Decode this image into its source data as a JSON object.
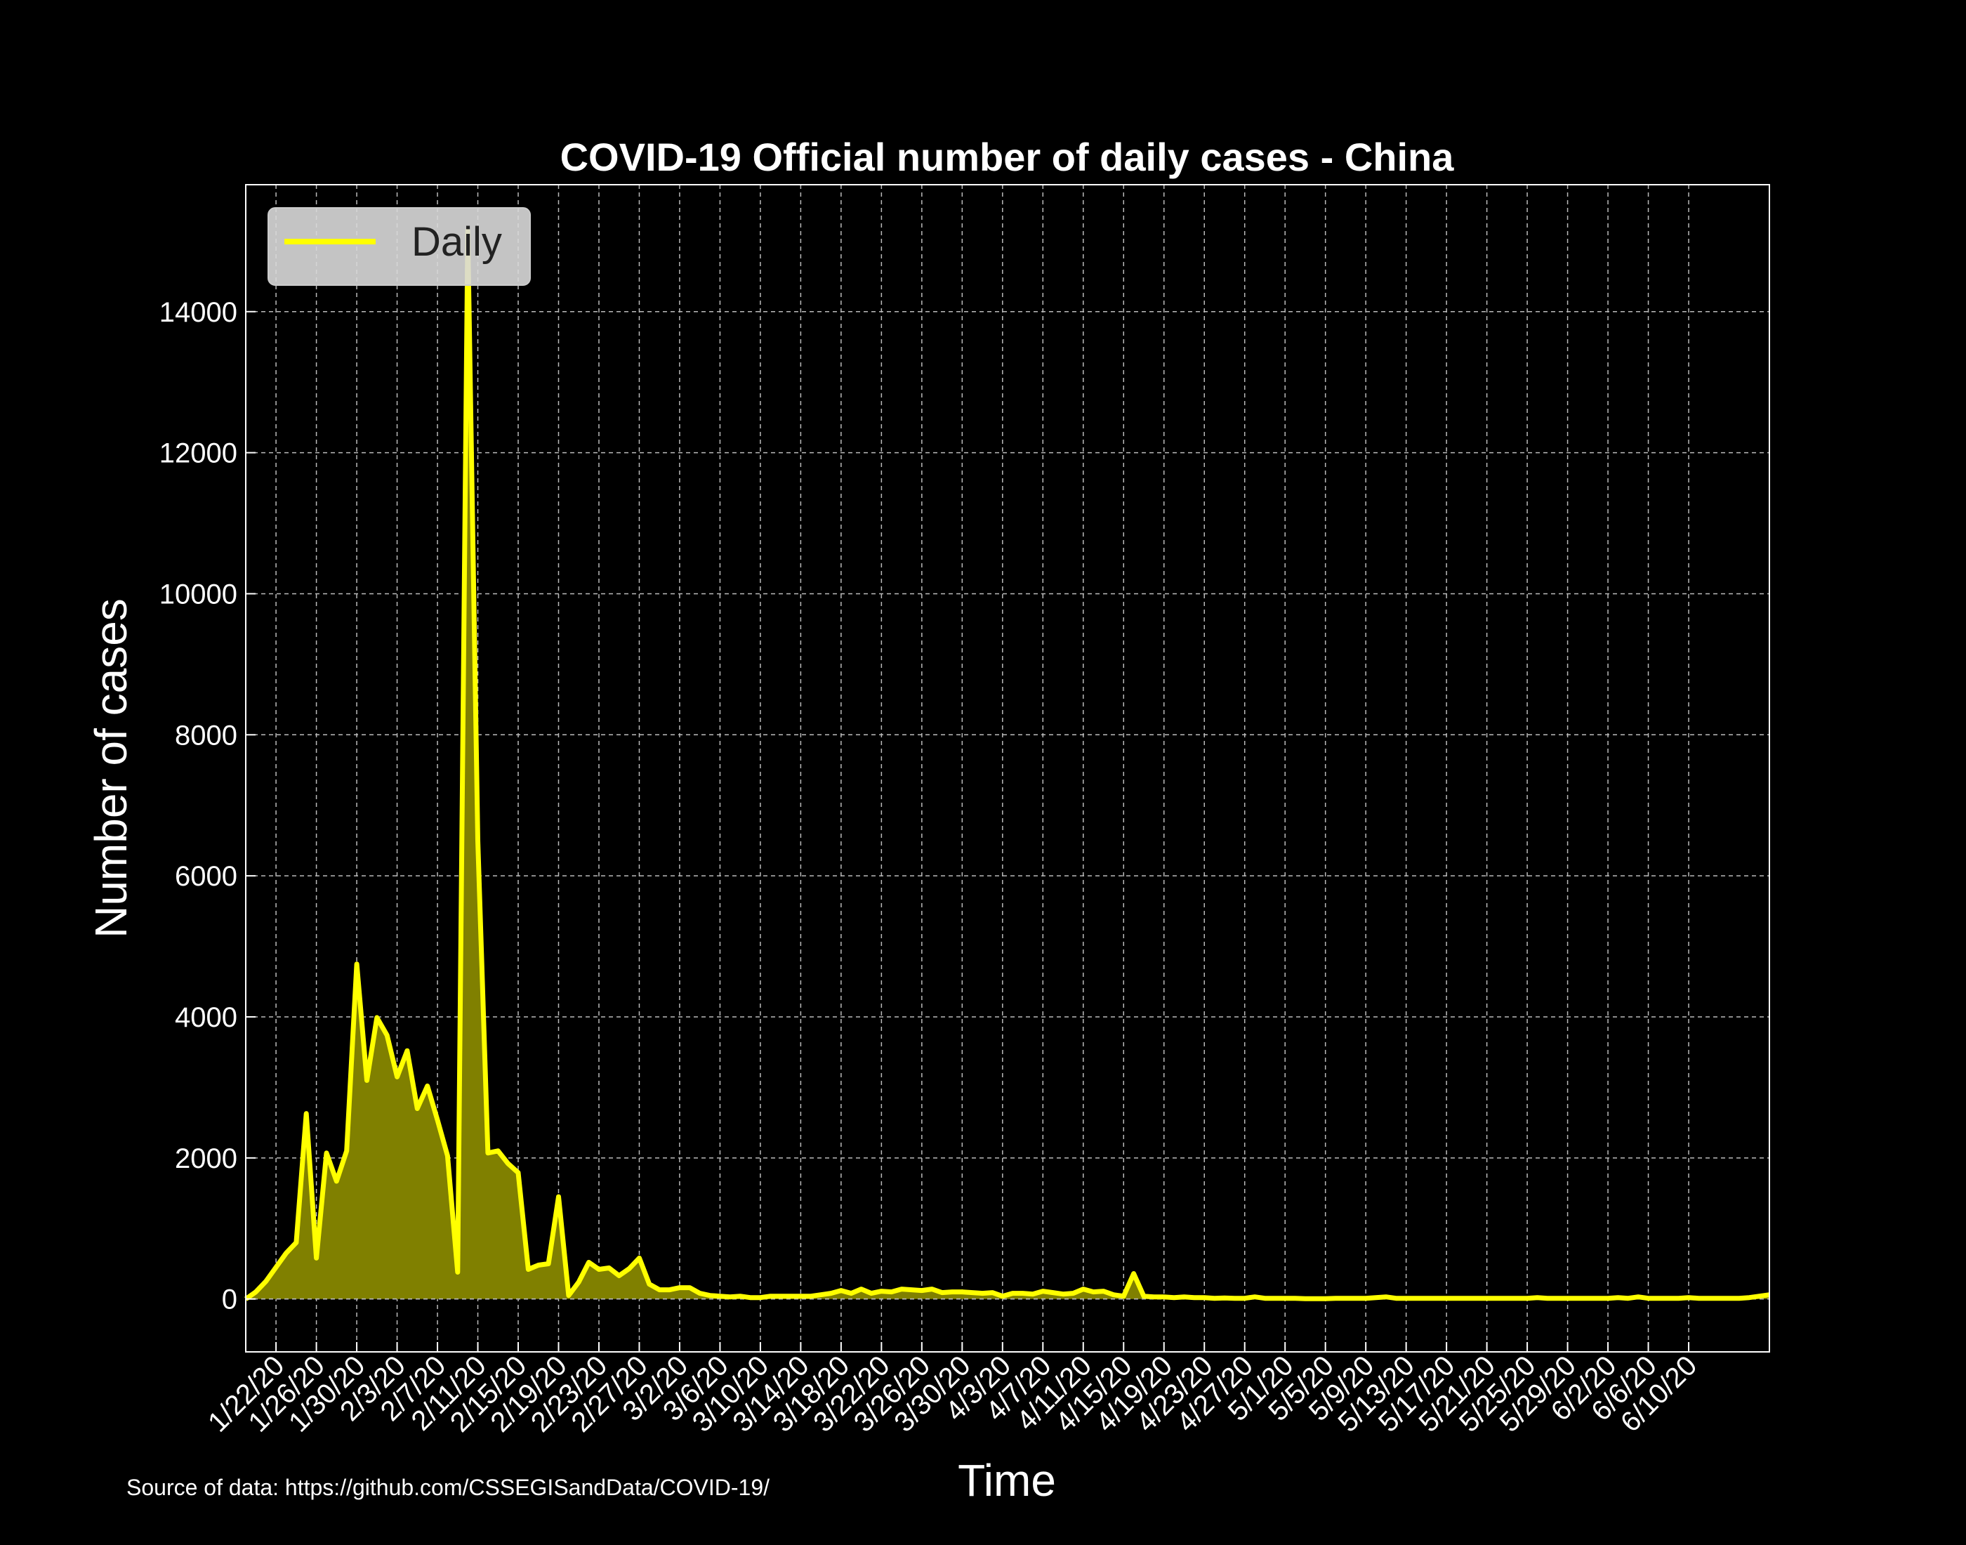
{
  "chart_data": {
    "type": "area",
    "title": "COVID-19 Official number of daily cases - China",
    "xlabel": "Time",
    "ylabel": "Number of cases",
    "ylim": [
      -750,
      15800
    ],
    "yticks": [
      0,
      2000,
      4000,
      6000,
      8000,
      10000,
      12000,
      14000
    ],
    "grid": true,
    "legend_position": "top-left",
    "colors": {
      "line": "#ffff00",
      "fill": "#808000",
      "background": "#000000",
      "grid": "#bbbbbb",
      "text": "#ffffff"
    },
    "xtick_labels": [
      "1/22/20",
      "1/26/20",
      "1/30/20",
      "2/3/20",
      "2/7/20",
      "2/11/20",
      "2/15/20",
      "2/19/20",
      "2/23/20",
      "2/27/20",
      "3/2/20",
      "3/6/20",
      "3/10/20",
      "3/14/20",
      "3/18/20",
      "3/22/20",
      "3/26/20",
      "3/30/20",
      "4/3/20",
      "4/7/20",
      "4/11/20",
      "4/15/20",
      "4/19/20",
      "4/23/20",
      "4/27/20",
      "5/1/20",
      "5/5/20",
      "5/9/20",
      "5/13/20",
      "5/17/20",
      "5/21/20",
      "5/25/20",
      "5/29/20",
      "6/2/20",
      "6/6/20",
      "6/10/20"
    ],
    "series": [
      {
        "name": "Daily",
        "start_date": "1/19/20",
        "values": [
          0,
          100,
          250,
          450,
          650,
          800,
          2630,
          580,
          2070,
          1670,
          2100,
          4750,
          3100,
          3990,
          3740,
          3150,
          3520,
          2700,
          3020,
          2540,
          2030,
          380,
          15150,
          6500,
          2070,
          2100,
          1920,
          1790,
          420,
          480,
          500,
          1450,
          50,
          240,
          520,
          420,
          440,
          330,
          430,
          580,
          210,
          130,
          130,
          160,
          160,
          80,
          50,
          40,
          30,
          40,
          20,
          20,
          40,
          40,
          40,
          40,
          40,
          60,
          80,
          120,
          80,
          140,
          80,
          110,
          100,
          140,
          130,
          120,
          140,
          90,
          100,
          100,
          90,
          80,
          90,
          40,
          80,
          80,
          70,
          110,
          90,
          70,
          80,
          140,
          100,
          110,
          60,
          40,
          360,
          40,
          30,
          30,
          20,
          30,
          20,
          20,
          10,
          15,
          10,
          10,
          30,
          10,
          10,
          10,
          10,
          5,
          5,
          5,
          10,
          10,
          10,
          10,
          20,
          30,
          10,
          10,
          10,
          10,
          10,
          10,
          10,
          10,
          10,
          10,
          10,
          10,
          10,
          10,
          20,
          10,
          10,
          10,
          10,
          10,
          10,
          10,
          20,
          10,
          30,
          10,
          10,
          10,
          10,
          20,
          10,
          10,
          10,
          10,
          10,
          20,
          40,
          60
        ]
      }
    ]
  },
  "source_note": "Source of data: https://github.com/CSSEGISandData/COVID-19/"
}
